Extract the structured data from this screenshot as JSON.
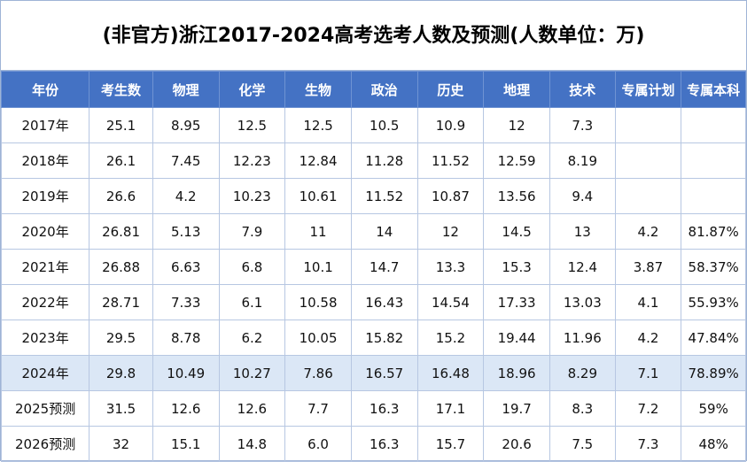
{
  "title": "(非官方)浙江2017-2024高考选考人数及预测(人数单位：万)",
  "highlight_color": "#dbe7f6",
  "header_color": "#4472c4",
  "headers": [
    "年份",
    "考生数",
    "物理",
    "化学",
    "生物",
    "政治",
    "历史",
    "地理",
    "技术",
    "专属计划",
    "专属本科"
  ],
  "rows": [
    [
      "2017年",
      "25.1",
      "8.95",
      "12.5",
      "12.5",
      "10.5",
      "10.9",
      "12",
      "7.3",
      "",
      ""
    ],
    [
      "2018年",
      "26.1",
      "7.45",
      "12.23",
      "12.84",
      "11.28",
      "11.52",
      "12.59",
      "8.19",
      "",
      ""
    ],
    [
      "2019年",
      "26.6",
      "4.2",
      "10.23",
      "10.61",
      "11.52",
      "10.87",
      "13.56",
      "9.4",
      "",
      ""
    ],
    [
      "2020年",
      "26.81",
      "5.13",
      "7.9",
      "11",
      "14",
      "12",
      "14.5",
      "13",
      "4.2",
      "81.87%"
    ],
    [
      "2021年",
      "26.88",
      "6.63",
      "6.8",
      "10.1",
      "14.7",
      "13.3",
      "15.3",
      "12.4",
      "3.87",
      "58.37%"
    ],
    [
      "2022年",
      "28.71",
      "7.33",
      "6.1",
      "10.58",
      "16.43",
      "14.54",
      "17.33",
      "13.03",
      "4.1",
      "55.93%"
    ],
    [
      "2023年",
      "29.5",
      "8.78",
      "6.2",
      "10.05",
      "15.82",
      "15.2",
      "19.44",
      "11.96",
      "4.2",
      "47.84%"
    ],
    [
      "2024年",
      "29.8",
      "10.49",
      "10.27",
      "7.86",
      "16.57",
      "16.48",
      "18.96",
      "8.29",
      "7.1",
      "78.89%"
    ],
    [
      "2025预测",
      "31.5",
      "12.6",
      "12.6",
      "7.7",
      "16.3",
      "17.1",
      "19.7",
      "8.3",
      "7.2",
      "59%"
    ],
    [
      "2026预测",
      "32",
      "15.1",
      "14.8",
      "6.0",
      "16.3",
      "15.7",
      "20.6",
      "7.5",
      "7.3",
      "48%"
    ]
  ],
  "highlighted_row": "2024年"
}
